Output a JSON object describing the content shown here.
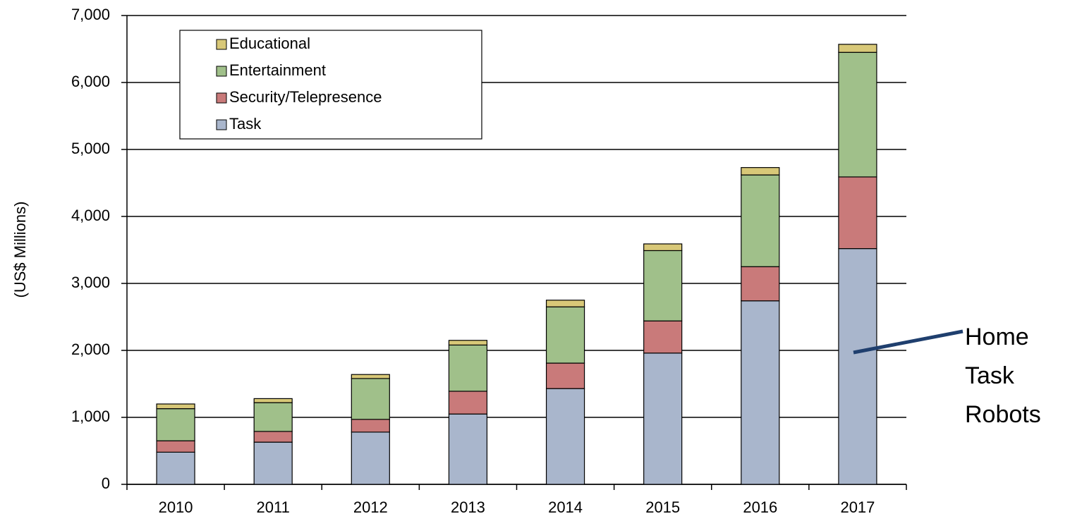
{
  "chart_data": {
    "type": "stacked_bar",
    "y_label": "(US$ Millions)",
    "categories": [
      "2010",
      "2011",
      "2012",
      "2013",
      "2014",
      "2015",
      "2016",
      "2017"
    ],
    "series": [
      {
        "name": "Task",
        "color": "#a9b6cc",
        "values": [
          480,
          630,
          780,
          1050,
          1430,
          1960,
          2740,
          3520
        ]
      },
      {
        "name": "Security/Telepresence",
        "color": "#c97a7a",
        "values": [
          170,
          160,
          190,
          340,
          380,
          480,
          510,
          1070
        ]
      },
      {
        "name": "Entertainment",
        "color": "#a0c08a",
        "values": [
          480,
          430,
          610,
          690,
          840,
          1050,
          1370,
          1860
        ]
      },
      {
        "name": "Educational",
        "color": "#d8c878",
        "values": [
          70,
          60,
          60,
          70,
          100,
          100,
          110,
          120
        ]
      }
    ],
    "ylim": [
      0,
      7000
    ],
    "yticks": [
      0,
      {
        "value": 1000,
        "label": "1,000"
      },
      {
        "value": 2000,
        "label": "2,000"
      },
      {
        "value": 3000,
        "label": "3,000"
      },
      {
        "value": 4000,
        "label": "4,000"
      },
      {
        "value": 5000,
        "label": "5,000"
      },
      {
        "value": 6000,
        "label": "6,000"
      },
      {
        "value": 7000,
        "label": "7,000"
      }
    ],
    "grid": true,
    "legend": "upper left",
    "annotation": [
      "Home",
      "Task",
      "Robots"
    ]
  }
}
